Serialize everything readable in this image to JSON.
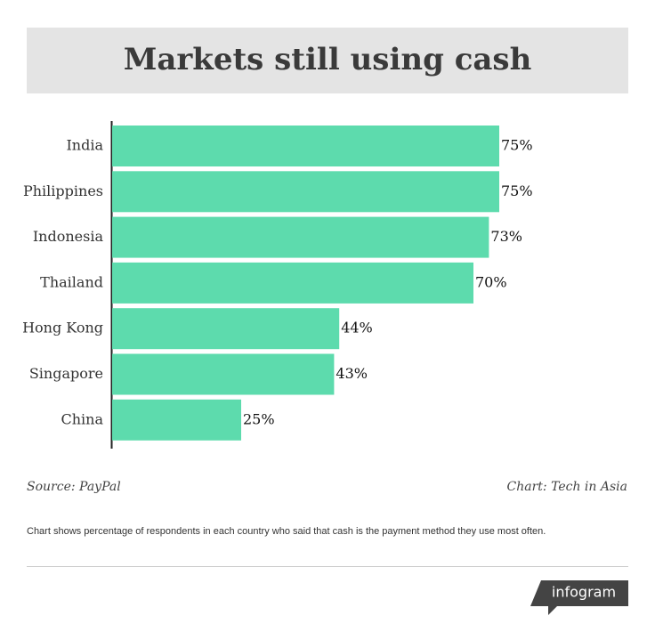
{
  "chart_data": {
    "type": "bar",
    "orientation": "horizontal",
    "title": "Markets still using cash",
    "categories": [
      "India",
      "Philippines",
      "Indonesia",
      "Thailand",
      "Hong Kong",
      "Singapore",
      "China"
    ],
    "values": [
      75,
      75,
      73,
      70,
      44,
      43,
      25
    ],
    "value_labels": [
      "75%",
      "75%",
      "73%",
      "70%",
      "44%",
      "43%",
      "25%"
    ],
    "color": "#5ddbad",
    "source": "Source: PayPal",
    "credit": "Chart: Tech in Asia",
    "note": "Chart shows percentage of respondents in each country who said that cash is the payment method they use most often.",
    "logo": "infogram"
  }
}
